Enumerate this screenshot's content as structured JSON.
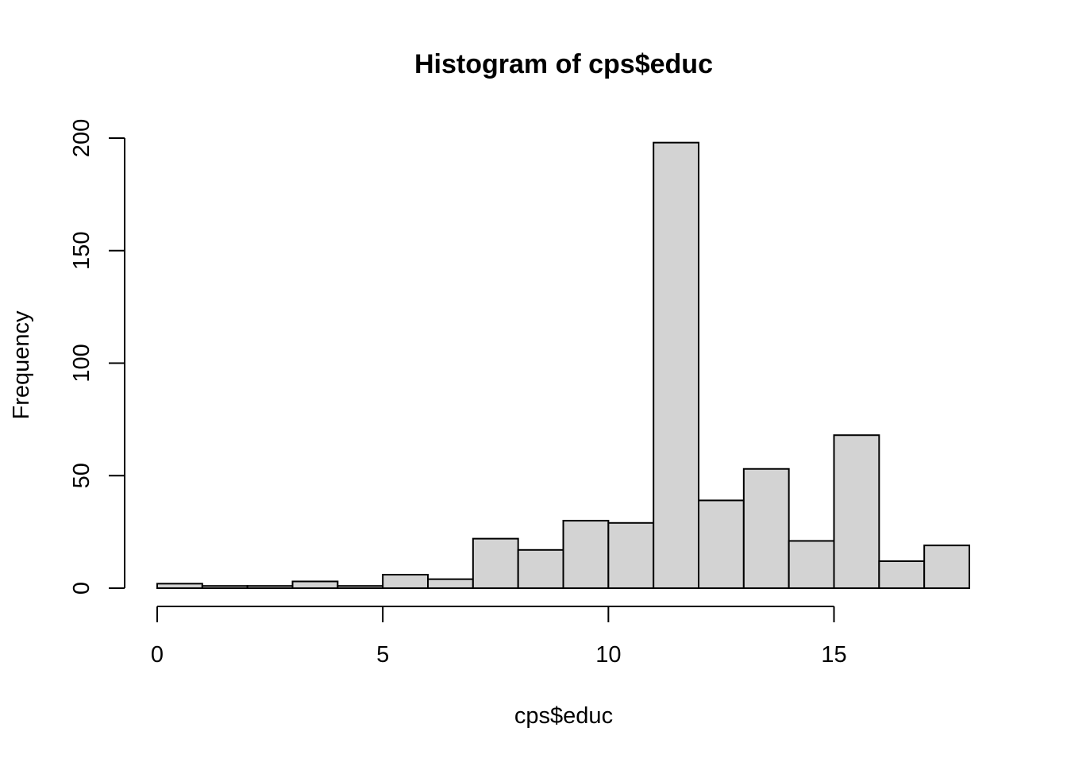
{
  "chart_data": {
    "type": "bar",
    "title": "Histogram of cps$educ",
    "xlabel": "cps$educ",
    "ylabel": "Frequency",
    "bin_edges": [
      0,
      1,
      2,
      3,
      4,
      5,
      6,
      7,
      8,
      9,
      10,
      11,
      12,
      13,
      14,
      15,
      16,
      17,
      18
    ],
    "values": [
      2,
      1,
      1,
      3,
      1,
      6,
      4,
      22,
      17,
      30,
      29,
      198,
      39,
      53,
      21,
      68,
      12,
      19
    ],
    "x_ticks": [
      0,
      5,
      10,
      15
    ],
    "x_tick_labels": [
      "0",
      "5",
      "10",
      "15"
    ],
    "y_ticks": [
      0,
      50,
      100,
      150,
      200
    ],
    "y_tick_labels": [
      "0",
      "50",
      "100",
      "150",
      "200"
    ],
    "xlim": [
      0,
      18
    ],
    "ylim": [
      0,
      200
    ],
    "bar_fill": "#d3d3d3",
    "grid": false,
    "legend": "none"
  }
}
